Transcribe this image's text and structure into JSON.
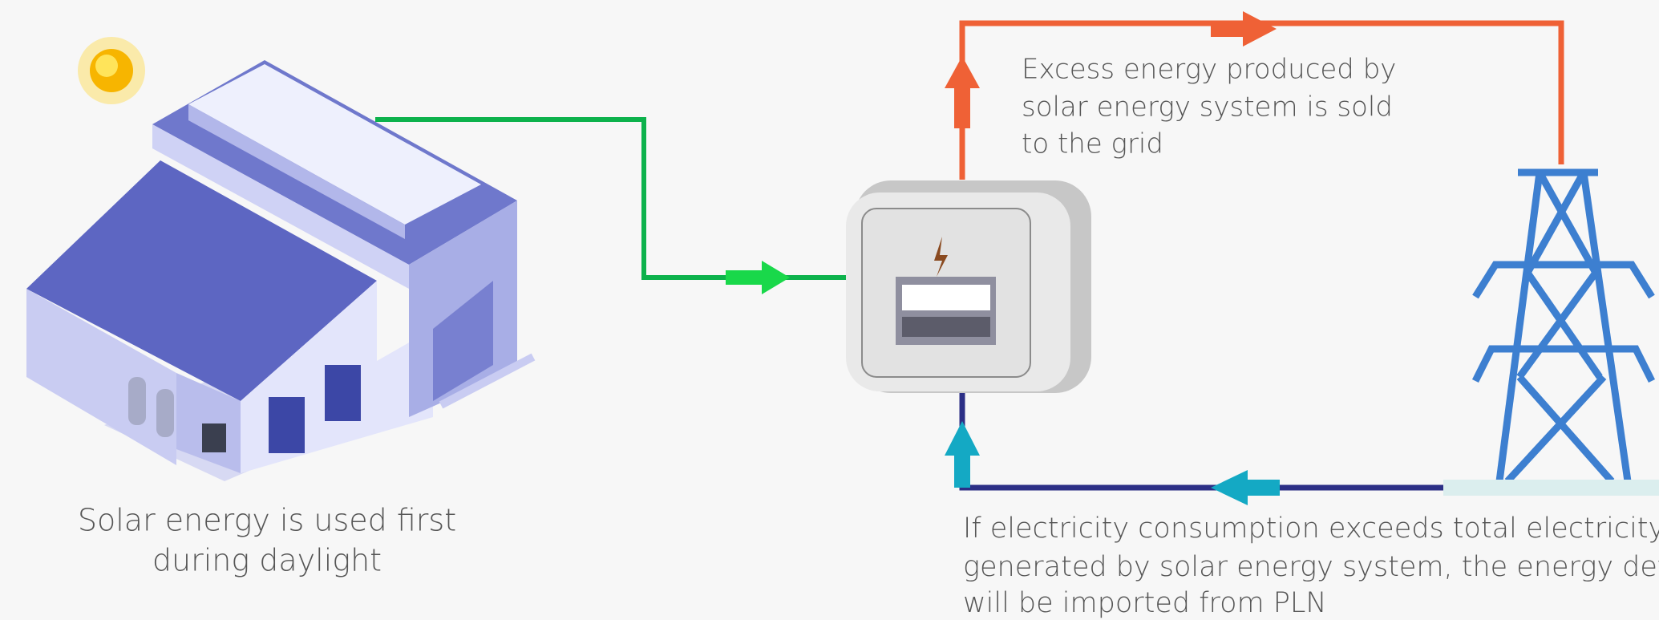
{
  "captions": {
    "grid_export": [
      "Excess energy produced by",
      "solar energy system is sold",
      "to the grid"
    ],
    "daylight": [
      "Solar energy is used first",
      "during daylight"
    ],
    "import": [
      "If electricity consumption exceeds total electricity",
      "generated by solar energy system, the energy deficit",
      "will be imported from PLN"
    ]
  }
}
